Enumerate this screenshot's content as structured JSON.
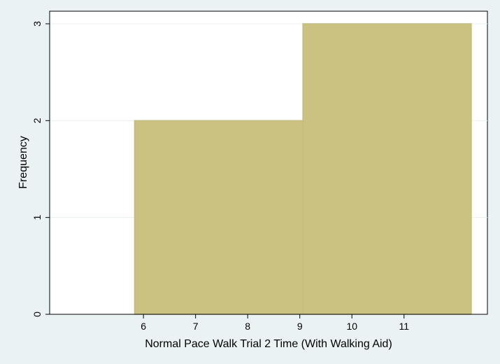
{
  "chart_data": {
    "type": "bar",
    "subtype": "histogram",
    "xlabel": "Normal Pace Walk Trial 2 Time (With Walking Aid)",
    "ylabel": "Frequency",
    "xlim": [
      4.2,
      12.6
    ],
    "ylim": [
      0,
      3.13
    ],
    "x_ticks": [
      6,
      7,
      8,
      9,
      10,
      11
    ],
    "y_ticks": [
      0,
      1,
      2,
      3
    ],
    "bins": [
      {
        "start": 5.83,
        "end": 9.06,
        "value": 2
      },
      {
        "start": 9.06,
        "end": 12.29,
        "value": 3
      }
    ],
    "grid": true,
    "colors": {
      "bar_fill": "#cbc282",
      "bar_edge": "#c3bb82",
      "plot_background": "#ffffff",
      "page_background": "#eaf2f3",
      "grid": "#e8eef0"
    }
  }
}
